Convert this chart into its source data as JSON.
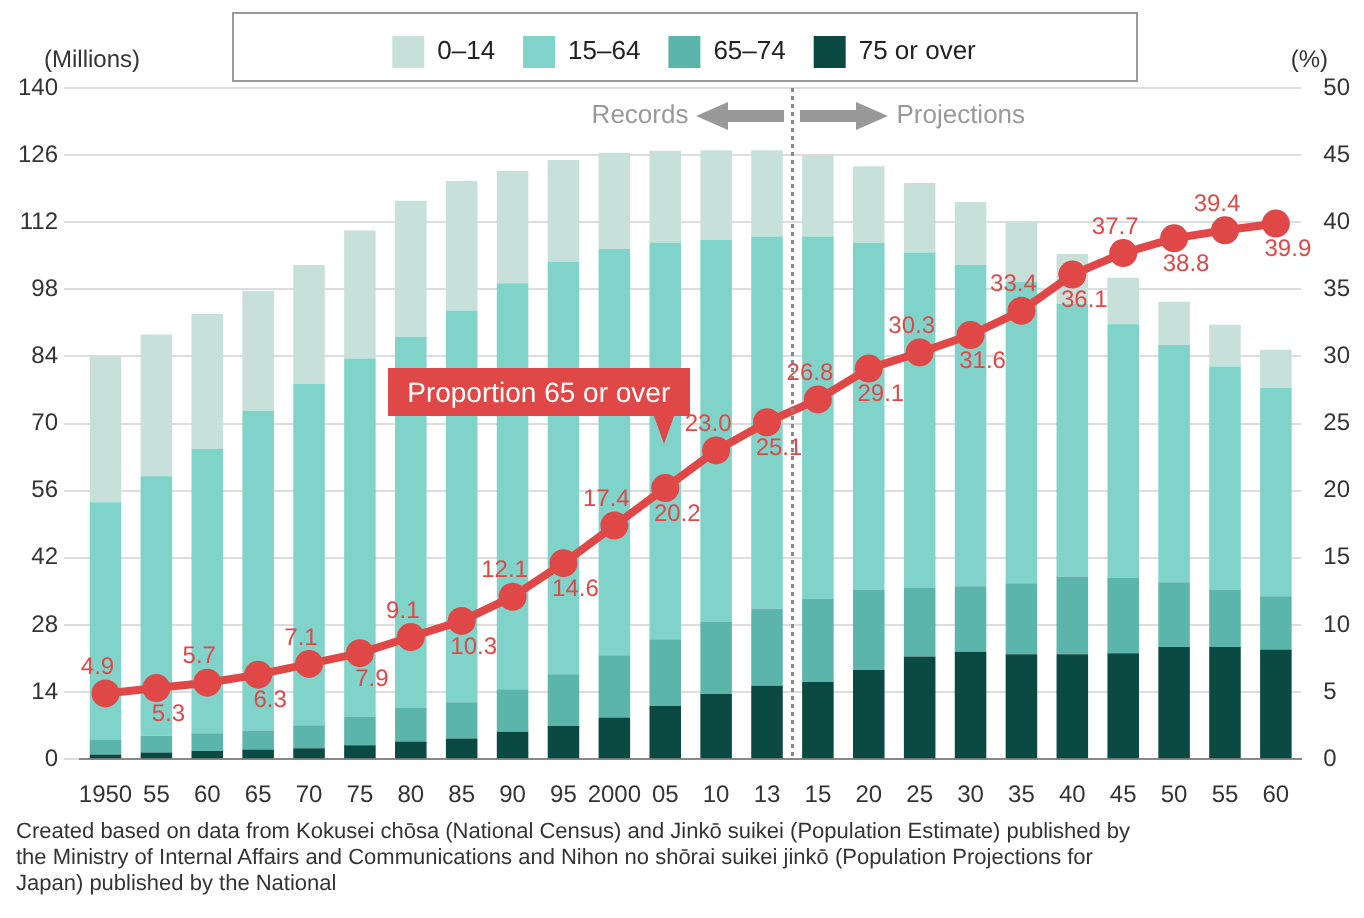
{
  "chart_data": {
    "type": "bar",
    "stacked": true,
    "ylabel": "(Millions)",
    "y2label": "(%)",
    "categories": [
      "1950",
      "55",
      "60",
      "65",
      "70",
      "75",
      "80",
      "85",
      "90",
      "95",
      "2000",
      "05",
      "10",
      "13",
      "15",
      "20",
      "25",
      "30",
      "35",
      "40",
      "45",
      "50",
      "55",
      "60"
    ],
    "series": [
      {
        "name": "75 or over",
        "color": "#0b4a42",
        "values": [
          1.0,
          1.4,
          1.7,
          2.0,
          2.3,
          2.9,
          3.7,
          4.3,
          5.7,
          6.9,
          8.7,
          11.1,
          13.6,
          15.3,
          16.1,
          18.6,
          21.4,
          22.4,
          21.9,
          21.9,
          22.1,
          23.4,
          23.4,
          22.9
        ]
      },
      {
        "name": "65–74",
        "color": "#5bb5ab",
        "values": [
          3.0,
          3.5,
          3.7,
          4.0,
          4.8,
          6.0,
          7.0,
          7.6,
          8.9,
          10.8,
          13.0,
          13.9,
          15.0,
          16.1,
          17.3,
          16.8,
          14.3,
          13.7,
          14.8,
          16.2,
          15.8,
          13.5,
          12.0,
          11.1
        ]
      },
      {
        "name": "15–64",
        "color": "#7fd3c8",
        "values": [
          49.6,
          54.1,
          59.3,
          66.7,
          71.2,
          74.7,
          77.4,
          81.7,
          84.7,
          86.0,
          84.7,
          82.8,
          79.7,
          77.6,
          75.6,
          72.3,
          70.0,
          67.0,
          62.9,
          56.9,
          52.8,
          49.5,
          46.5,
          43.4
        ]
      },
      {
        "name": "0–14",
        "color": "#c8e0da",
        "values": [
          30.4,
          29.6,
          28.2,
          25.0,
          24.8,
          26.7,
          28.4,
          27.0,
          23.4,
          21.3,
          20.1,
          19.1,
          18.7,
          18.0,
          17.0,
          16.0,
          14.5,
          13.1,
          12.6,
          10.4,
          9.7,
          9.0,
          8.7,
          8.0
        ]
      },
      {
        "name": "Proportion 65 or over",
        "type": "line",
        "axis": "y2",
        "color": "#e04848",
        "values": [
          4.9,
          5.3,
          5.7,
          6.3,
          7.1,
          7.9,
          9.1,
          10.3,
          12.1,
          14.6,
          17.4,
          20.2,
          23.0,
          25.1,
          26.8,
          29.1,
          30.3,
          31.6,
          33.4,
          36.1,
          37.7,
          38.8,
          39.4,
          39.9
        ],
        "value_labels": [
          "4.9",
          "5.3",
          "5.7",
          "6.3",
          "7.1",
          "7.9",
          "9.1",
          "10.3",
          "12.1",
          "14.6",
          "17.4",
          "20.2",
          "23.0",
          "25.1",
          "26.8",
          "29.1",
          "30.3",
          "31.6",
          "33.4",
          "36.1",
          "37.7",
          "38.8",
          "39.4",
          "39.9"
        ]
      }
    ],
    "ylim": [
      0,
      140
    ],
    "yticks": [
      0,
      14,
      28,
      42,
      56,
      70,
      84,
      98,
      112,
      126,
      140
    ],
    "y2lim": [
      0,
      50
    ],
    "y2ticks": [
      0,
      5,
      10,
      15,
      20,
      25,
      30,
      35,
      40,
      45,
      50
    ],
    "grid": "y",
    "legend": "top",
    "marker": "circle",
    "ref_lines": [
      {
        "axis": "x",
        "value": "13",
        "color": "#888888",
        "line_style": "dotted"
      }
    ],
    "annotations": [
      "Records",
      "Projections",
      "Created based on data from Kokusei chōsa (National Census) and Jinkō suikei (Population Estimate) published by the Ministry of Internal Affairs and Communications and Nihon no shōrai suikei jinkō (Population Projections for Japan) published by the National"
    ]
  }
}
